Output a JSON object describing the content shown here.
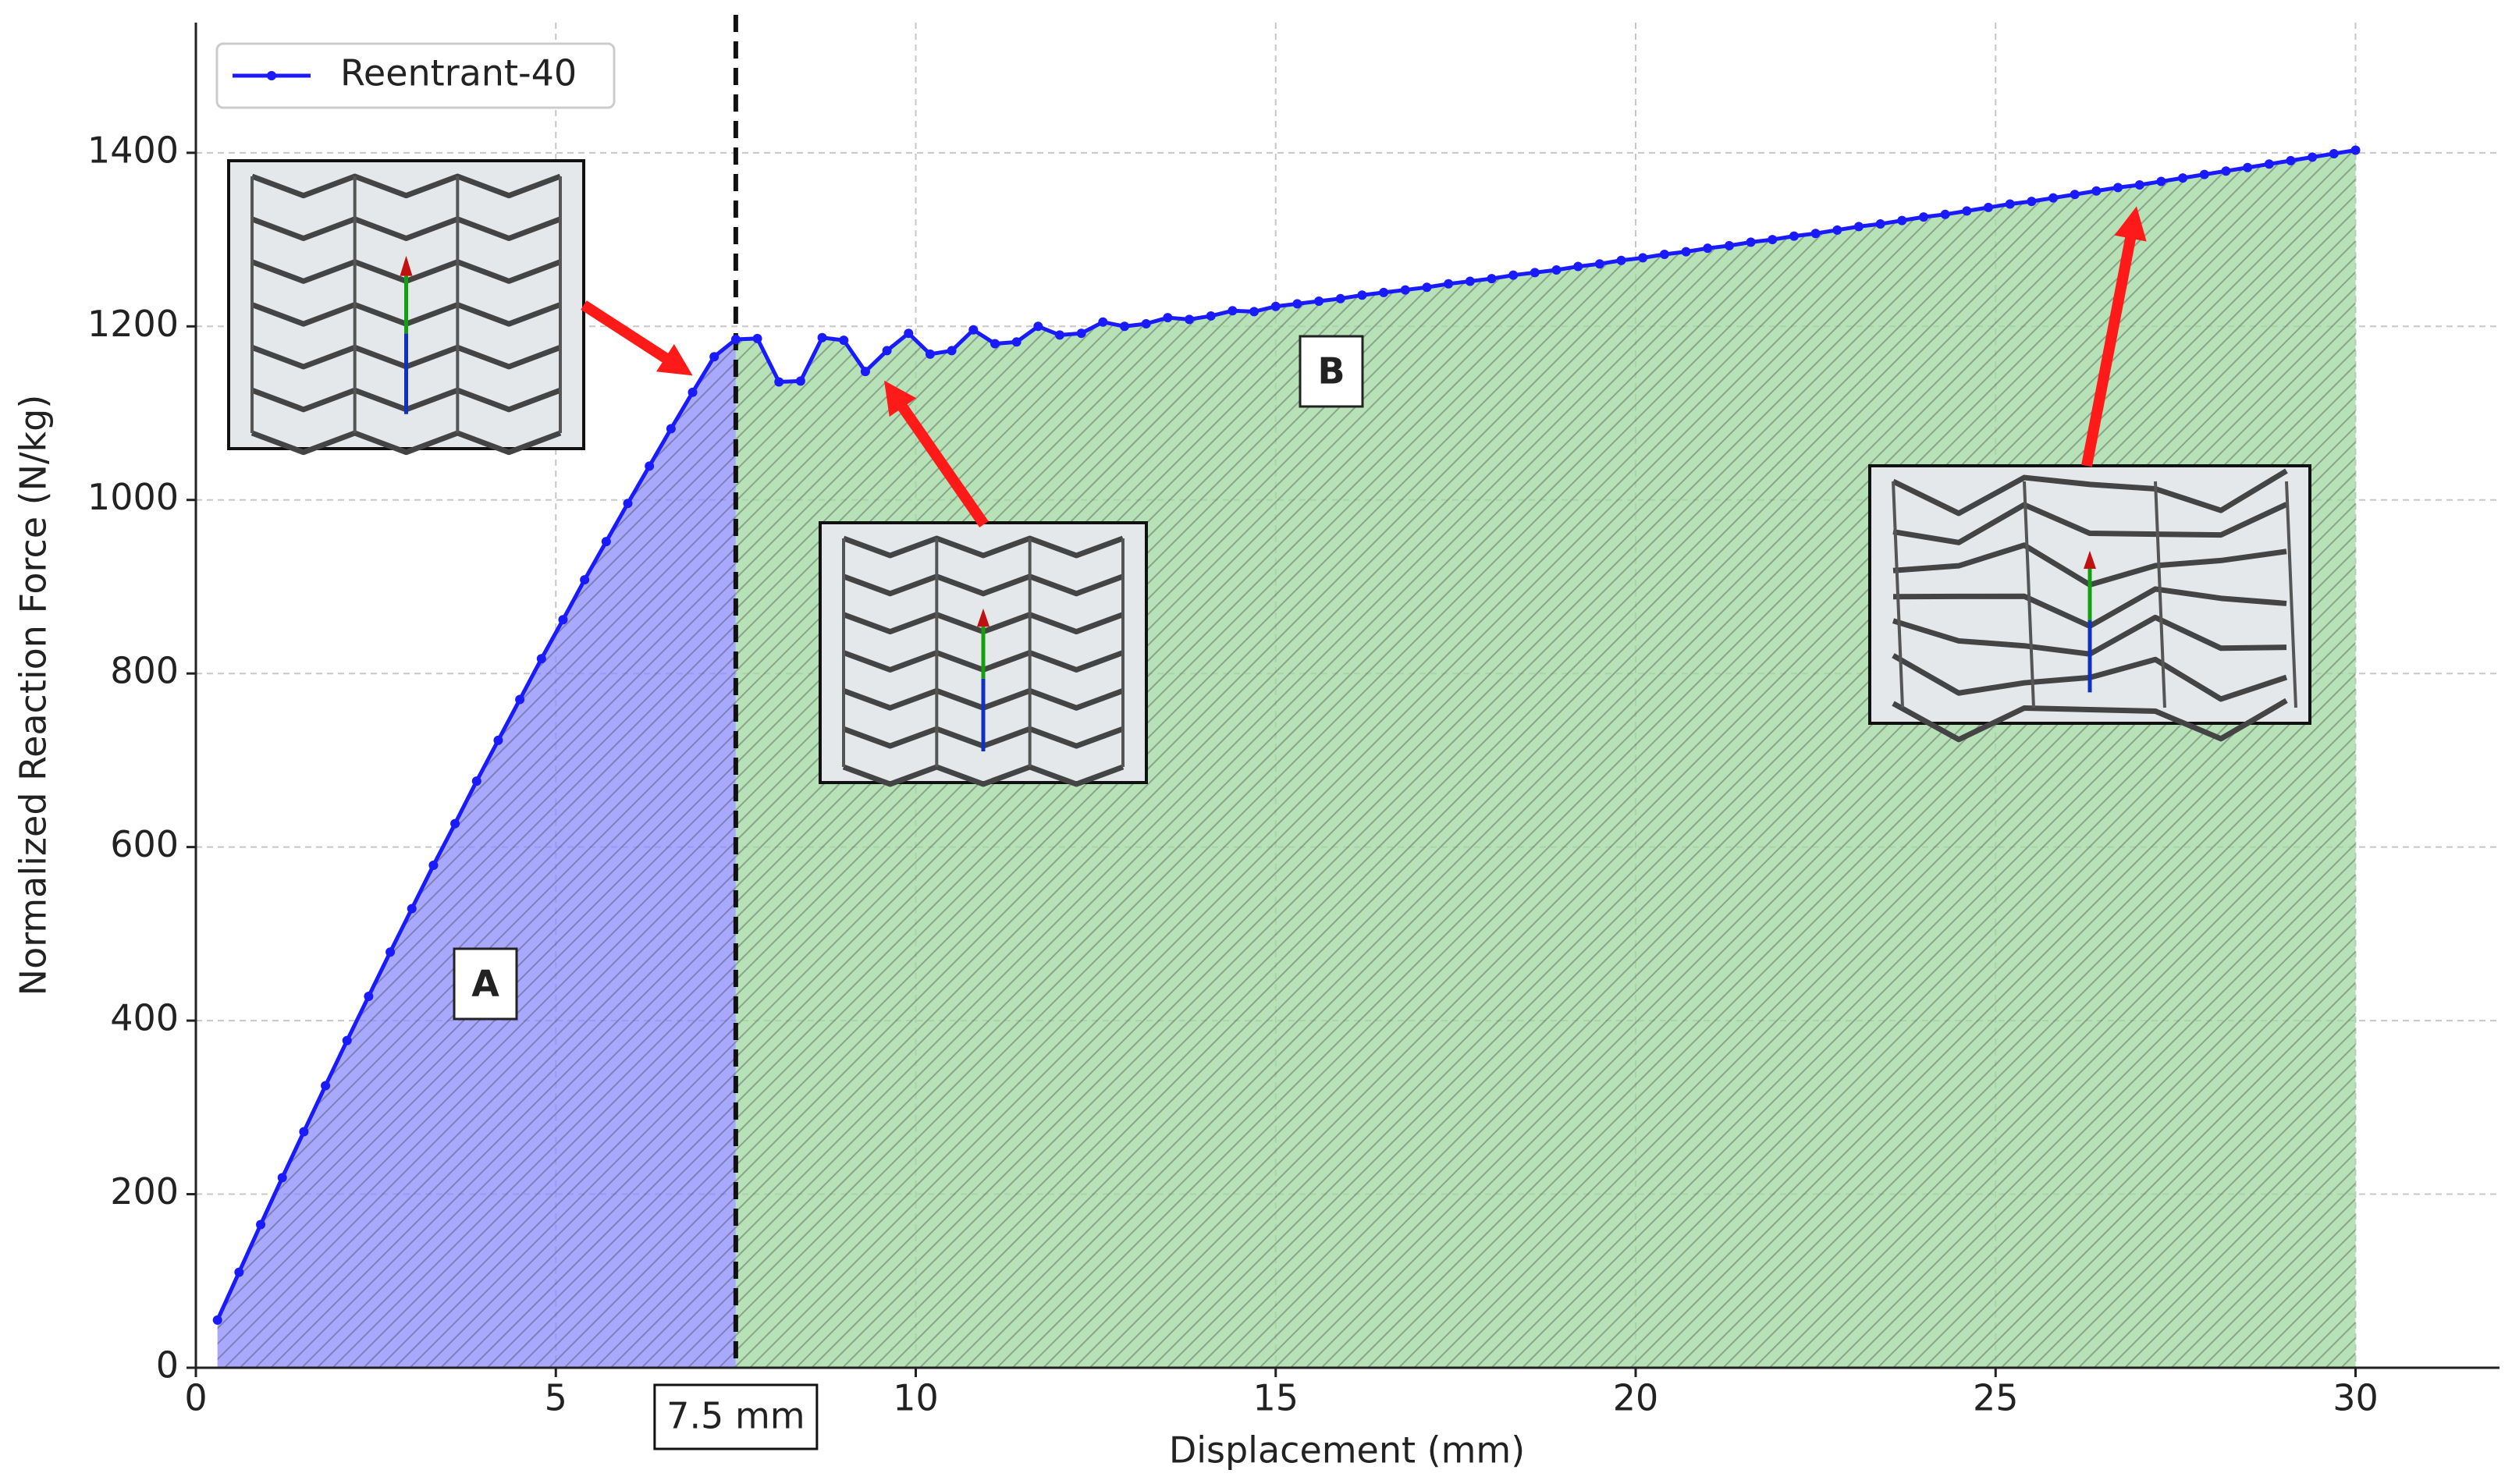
{
  "chart_data": {
    "type": "line",
    "xlabel": "Displacement (mm)",
    "ylabel": "Normalized Reaction Force (N/kg)",
    "x": [
      0.3,
      0.6,
      0.9,
      1.2,
      1.5,
      1.8,
      2.1,
      2.4,
      2.7,
      3.0,
      3.3,
      3.6,
      3.9,
      4.2,
      4.5,
      4.8,
      5.1,
      5.4,
      5.7,
      6.0,
      6.3,
      6.6,
      6.9,
      7.2,
      7.5,
      7.8,
      8.1,
      8.4,
      8.7,
      9.0,
      9.3,
      9.6,
      9.9,
      10.2,
      10.5,
      10.8,
      11.1,
      11.4,
      11.7,
      12.0,
      12.3,
      12.6,
      12.9,
      13.2,
      13.5,
      13.8,
      14.1,
      14.4,
      14.7,
      15.0,
      15.3,
      15.6,
      15.9,
      16.2,
      16.5,
      16.8,
      17.1,
      17.4,
      17.7,
      18.0,
      18.3,
      18.6,
      18.9,
      19.2,
      19.5,
      19.8,
      20.1,
      20.4,
      20.7,
      21.0,
      21.3,
      21.6,
      21.9,
      22.2,
      22.5,
      22.8,
      23.1,
      23.4,
      23.7,
      24.0,
      24.3,
      24.6,
      24.9,
      25.2,
      25.5,
      25.8,
      26.1,
      26.4,
      26.7,
      27.0,
      27.3,
      27.6,
      27.9,
      28.2,
      28.5,
      28.8,
      29.1,
      29.4,
      29.7,
      30.0
    ],
    "series": [
      {
        "name": "Reentrant-40",
        "color": "#1a1aff",
        "values": [
          55,
          110,
          165,
          219,
          272,
          325,
          377,
          428,
          479,
          529,
          579,
          627,
          676,
          723,
          770,
          817,
          862,
          908,
          952,
          996,
          1039,
          1082,
          1124,
          1165,
          1185,
          1186,
          1136,
          1137,
          1187,
          1184,
          1148,
          1172,
          1192,
          1168,
          1172,
          1196,
          1180,
          1182,
          1200,
          1190,
          1192,
          1205,
          1200,
          1203,
          1210,
          1208,
          1212,
          1218,
          1217,
          1223,
          1226,
          1229,
          1232,
          1236,
          1239,
          1242,
          1245,
          1249,
          1252,
          1255,
          1259,
          1262,
          1265,
          1269,
          1272,
          1276,
          1279,
          1283,
          1286,
          1290,
          1293,
          1297,
          1300,
          1304,
          1307,
          1311,
          1315,
          1318,
          1322,
          1326,
          1329,
          1333,
          1337,
          1341,
          1344,
          1348,
          1352,
          1356,
          1360,
          1363,
          1367,
          1371,
          1375,
          1379,
          1383,
          1387,
          1391,
          1395,
          1399,
          1403
        ]
      }
    ],
    "xlim": [
      0,
      32
    ],
    "ylim": [
      0,
      1550
    ],
    "xticks": [
      0,
      5,
      10,
      15,
      20,
      25,
      30
    ],
    "yticks": [
      0,
      200,
      400,
      600,
      800,
      1000,
      1200,
      1400
    ],
    "grid": true,
    "legend": "upper left",
    "vline": {
      "value": 7.5,
      "label": "7.5 mm"
    },
    "regions": [
      {
        "label": "A",
        "color": "#8a8aff"
      },
      {
        "label": "B",
        "color": "#9ed69e"
      }
    ]
  }
}
